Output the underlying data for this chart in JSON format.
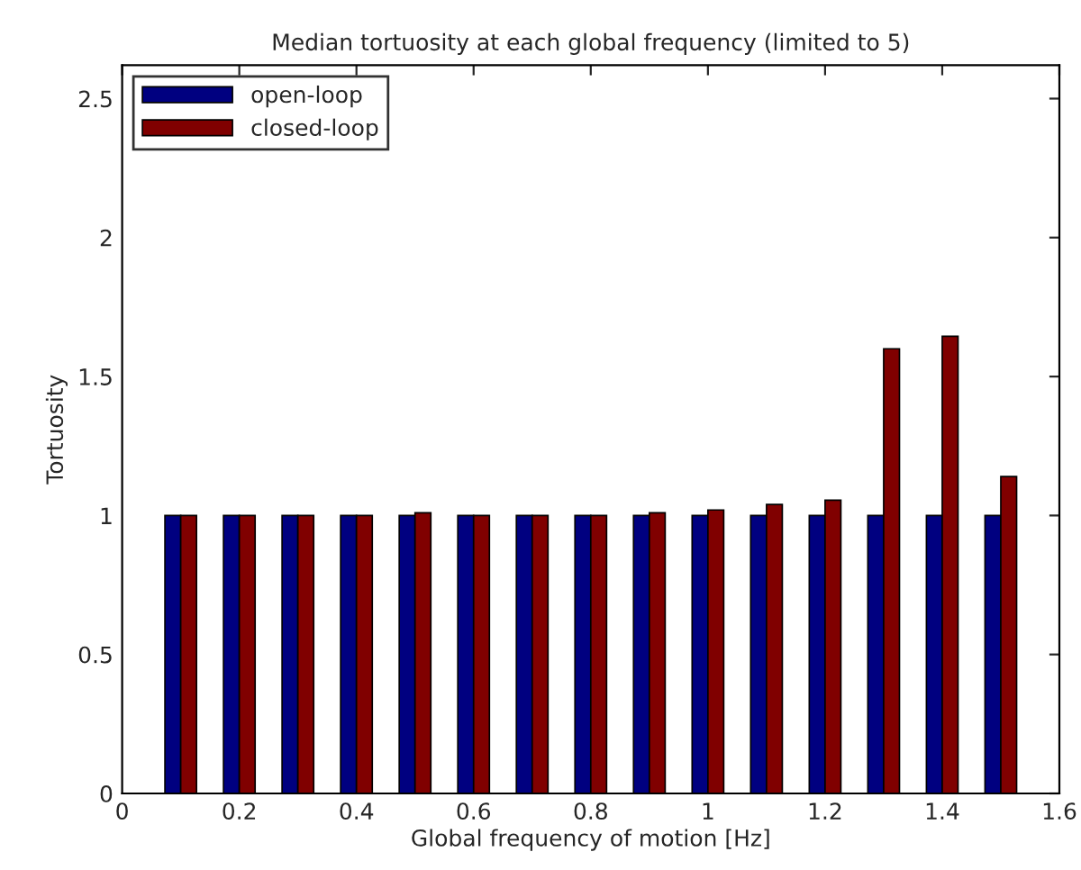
{
  "chart_data": {
    "type": "bar",
    "title": "Median tortuosity at each global frequency (limited to 5)",
    "xlabel": "Global frequency of motion [Hz]",
    "ylabel": "Tortuosity",
    "x": [
      0.1,
      0.2,
      0.3,
      0.4,
      0.5,
      0.6,
      0.7,
      0.8,
      0.9,
      1.0,
      1.1,
      1.2,
      1.3,
      1.4,
      1.5
    ],
    "series": [
      {
        "name": "open-loop",
        "color": "#000080",
        "values": [
          1,
          1,
          1,
          1,
          1,
          1,
          1,
          1,
          1,
          1,
          1,
          1,
          1,
          1,
          1
        ]
      },
      {
        "name": "closed-loop",
        "color": "#800000",
        "values": [
          1,
          1,
          1,
          1,
          1.01,
          1,
          1,
          1,
          1.01,
          1.02,
          1.04,
          1.055,
          1.6,
          1.645,
          1.14
        ]
      }
    ],
    "xlim": [
      0,
      1.6
    ],
    "xticks": [
      0,
      0.2,
      0.4,
      0.6,
      0.8,
      1,
      1.2,
      1.4,
      1.6
    ],
    "ylim": [
      0,
      2.62
    ],
    "yticks": [
      0,
      0.5,
      1,
      1.5,
      2,
      2.5
    ],
    "grid": false,
    "legend": "top left"
  }
}
